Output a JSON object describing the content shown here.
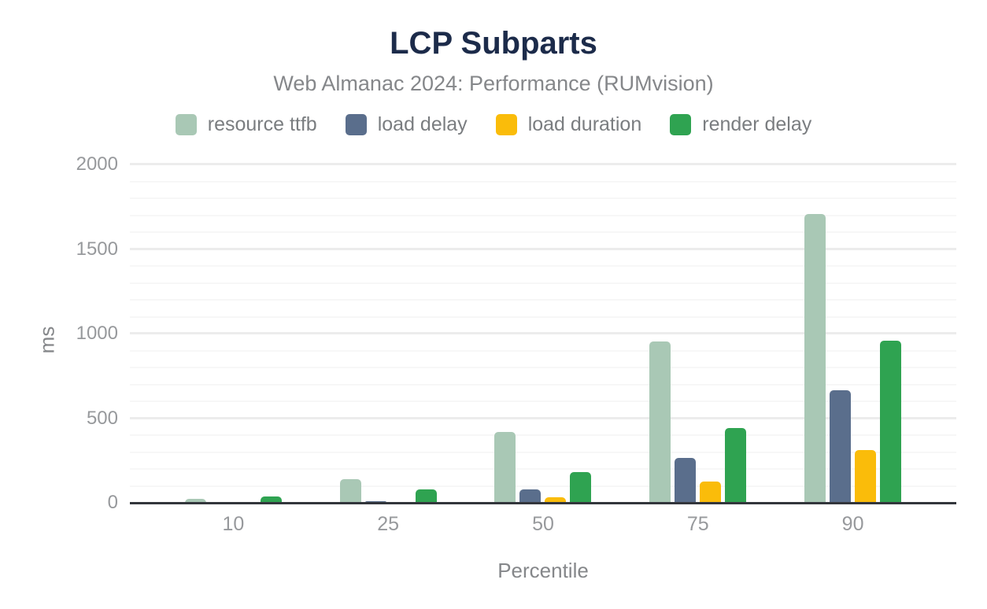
{
  "header": {
    "title": "LCP Subparts",
    "subtitle": "Web Almanac 2024: Performance (RUMvision)"
  },
  "chart_data": {
    "type": "bar",
    "title": "LCP Subparts",
    "subtitle": "Web Almanac 2024: Performance (RUMvision)",
    "xlabel": "Percentile",
    "ylabel": "ms",
    "ylim": [
      0,
      2000
    ],
    "yticks": [
      0,
      500,
      1000,
      1500,
      2000
    ],
    "grid": {
      "on": true,
      "minor_step": 100,
      "major_step": 500
    },
    "legend_position": "top",
    "categories": [
      "10",
      "25",
      "50",
      "75",
      "90"
    ],
    "series": [
      {
        "name": "resource ttfb",
        "color": "#a9c8b5",
        "values": [
          25,
          140,
          420,
          955,
          1705
        ]
      },
      {
        "name": "load delay",
        "color": "#5a6e8c",
        "values": [
          4,
          10,
          78,
          265,
          663
        ]
      },
      {
        "name": "load duration",
        "color": "#fabc0a",
        "values": [
          2,
          4,
          32,
          125,
          310
        ]
      },
      {
        "name": "render delay",
        "color": "#2fa351",
        "values": [
          35,
          78,
          180,
          440,
          960
        ]
      }
    ]
  },
  "colors": {
    "title": "#1c2b4a",
    "subtitle": "#85878a",
    "tick_label": "#97999c",
    "axis_line": "#33363c",
    "gridline_minor": "#f7f7f7",
    "gridline_major": "#ececec",
    "background": "#ffffff"
  }
}
